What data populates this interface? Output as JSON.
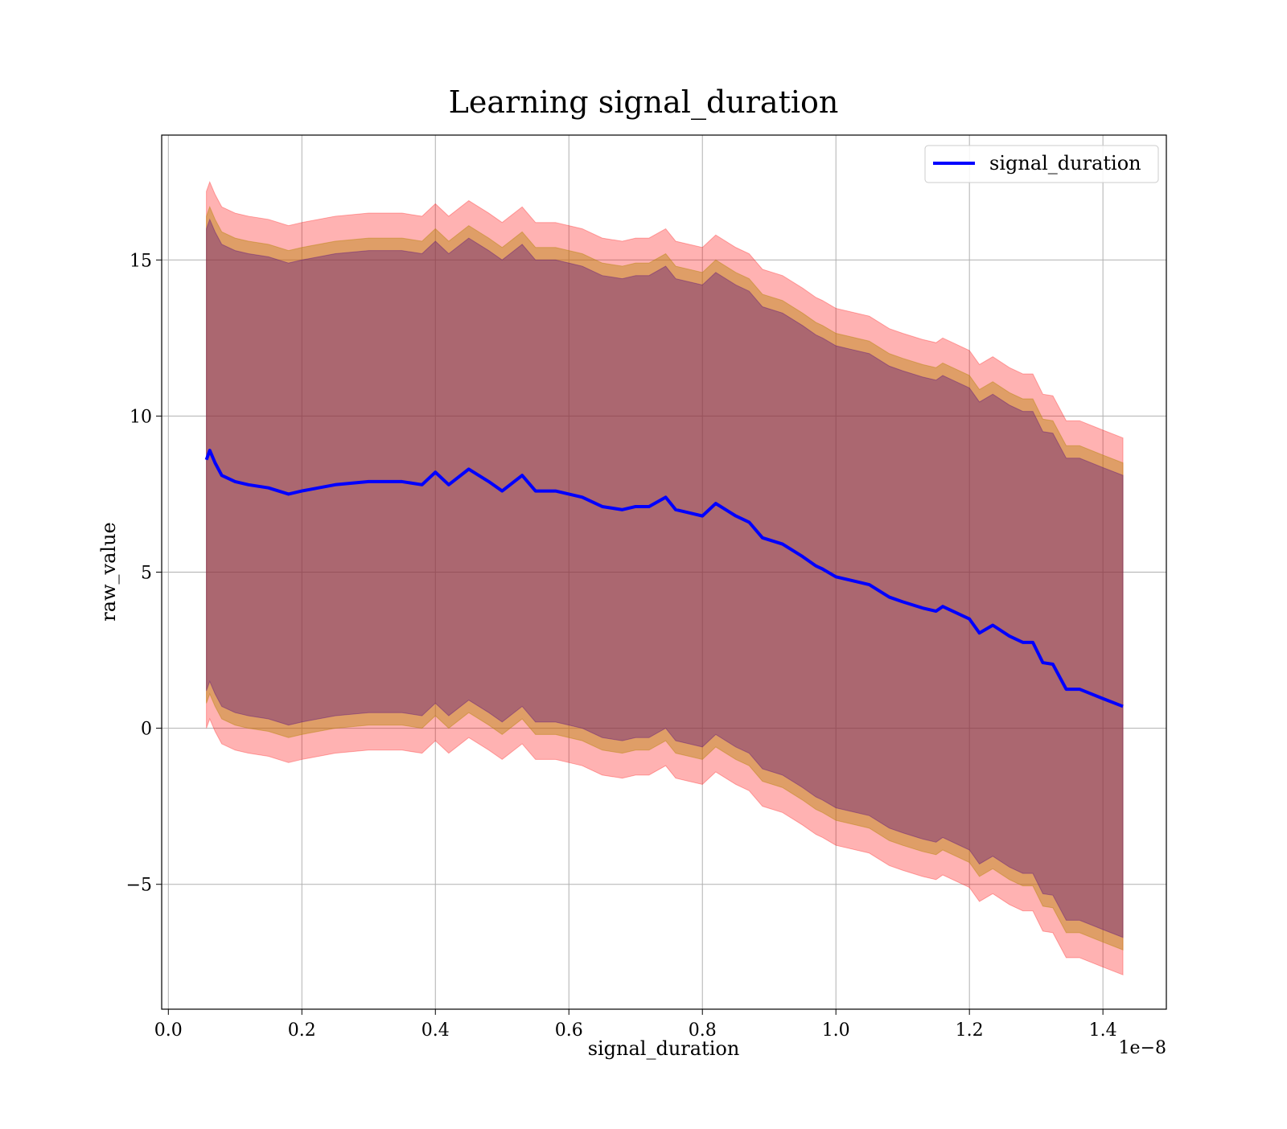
{
  "chart_data": {
    "type": "line",
    "title": "Learning signal_duration",
    "xlabel": "signal_duration",
    "ylabel": "raw_value",
    "x_offset_label": "1e−8",
    "xlim": [
      -0.01,
      1.495
    ],
    "ylim": [
      -9.0,
      19.0
    ],
    "xticks": [
      0.0,
      0.2,
      0.4,
      0.6,
      0.8,
      1.0,
      1.2,
      1.4
    ],
    "xtick_labels": [
      "0.0",
      "0.2",
      "0.4",
      "0.6",
      "0.8",
      "1.0",
      "1.2",
      "1.4"
    ],
    "yticks": [
      -5,
      0,
      5,
      10,
      15
    ],
    "ytick_labels": [
      "−5",
      "0",
      "5",
      "10",
      "15"
    ],
    "grid": true,
    "legend_position": "top-right",
    "series": [
      {
        "name": "signal_duration",
        "color": "#0000ff",
        "x": [
          0.057,
          0.062,
          0.07,
          0.08,
          0.1,
          0.12,
          0.15,
          0.18,
          0.2,
          0.25,
          0.3,
          0.35,
          0.38,
          0.4,
          0.42,
          0.45,
          0.48,
          0.5,
          0.53,
          0.55,
          0.58,
          0.6,
          0.62,
          0.65,
          0.68,
          0.7,
          0.72,
          0.745,
          0.76,
          0.78,
          0.8,
          0.82,
          0.85,
          0.87,
          0.89,
          0.92,
          0.95,
          0.97,
          0.98,
          1.0,
          1.02,
          1.05,
          1.08,
          1.1,
          1.13,
          1.15,
          1.16,
          1.18,
          1.2,
          1.215,
          1.235,
          1.26,
          1.28,
          1.295,
          1.31,
          1.325,
          1.345,
          1.365,
          1.4,
          1.43
        ],
        "values": [
          8.6,
          8.9,
          8.5,
          8.1,
          7.9,
          7.8,
          7.7,
          7.5,
          7.6,
          7.8,
          7.9,
          7.9,
          7.8,
          8.2,
          7.8,
          8.3,
          7.9,
          7.6,
          8.1,
          7.6,
          7.6,
          7.5,
          7.4,
          7.1,
          7.0,
          7.1,
          7.1,
          7.4,
          7.0,
          6.9,
          6.8,
          7.2,
          6.8,
          6.6,
          6.1,
          5.9,
          5.5,
          5.2,
          5.1,
          4.85,
          4.75,
          4.6,
          4.2,
          4.05,
          3.85,
          3.75,
          3.9,
          3.7,
          3.5,
          3.05,
          3.3,
          2.95,
          2.75,
          2.75,
          2.1,
          2.05,
          1.25,
          1.25,
          0.95,
          0.7
        ]
      }
    ],
    "bands": [
      {
        "color": "#ff0000",
        "opacity": 0.3,
        "offset_upper": 8.6,
        "offset_lower": 8.6
      },
      {
        "color": "#b8860b",
        "opacity": 0.45,
        "offset_upper": 7.8,
        "offset_lower": 7.8
      },
      {
        "color": "#4b0082",
        "opacity": 0.35,
        "offset_upper": 7.4,
        "offset_lower": 7.4
      }
    ]
  }
}
